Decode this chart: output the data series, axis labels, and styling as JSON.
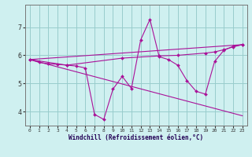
{
  "title": "",
  "xlabel": "Windchill (Refroidissement éolien,°C)",
  "ylabel": "",
  "xlim": [
    -0.5,
    23.5
  ],
  "ylim": [
    3.5,
    7.8
  ],
  "yticks": [
    4,
    5,
    6,
    7
  ],
  "xticks": [
    0,
    1,
    2,
    3,
    4,
    5,
    6,
    7,
    8,
    9,
    10,
    11,
    12,
    13,
    14,
    15,
    16,
    17,
    18,
    19,
    20,
    21,
    22,
    23
  ],
  "bg_color": "#cff0f0",
  "line_color": "#aa1199",
  "grid_color": "#99cccc",
  "lines": [
    {
      "x": [
        0,
        1,
        2,
        3,
        4,
        5,
        6,
        7,
        8,
        9,
        10,
        11,
        12,
        13,
        14,
        15,
        16,
        17,
        18,
        19,
        20,
        21,
        22,
        23
      ],
      "y": [
        5.85,
        5.75,
        5.7,
        5.68,
        5.65,
        5.62,
        5.55,
        3.9,
        3.72,
        4.8,
        5.25,
        4.82,
        6.55,
        7.28,
        5.95,
        5.85,
        5.65,
        5.1,
        4.72,
        4.62,
        5.78,
        6.18,
        6.32,
        6.38
      ],
      "has_markers": true
    },
    {
      "x": [
        0,
        4,
        10,
        14,
        16,
        19,
        20,
        21,
        22,
        23
      ],
      "y": [
        5.85,
        5.65,
        5.9,
        5.98,
        6.0,
        6.08,
        6.12,
        6.2,
        6.3,
        6.38
      ],
      "has_markers": true
    },
    {
      "x": [
        0,
        23
      ],
      "y": [
        5.85,
        3.85
      ],
      "has_markers": false
    },
    {
      "x": [
        0,
        23
      ],
      "y": [
        5.85,
        6.38
      ],
      "has_markers": false
    }
  ]
}
